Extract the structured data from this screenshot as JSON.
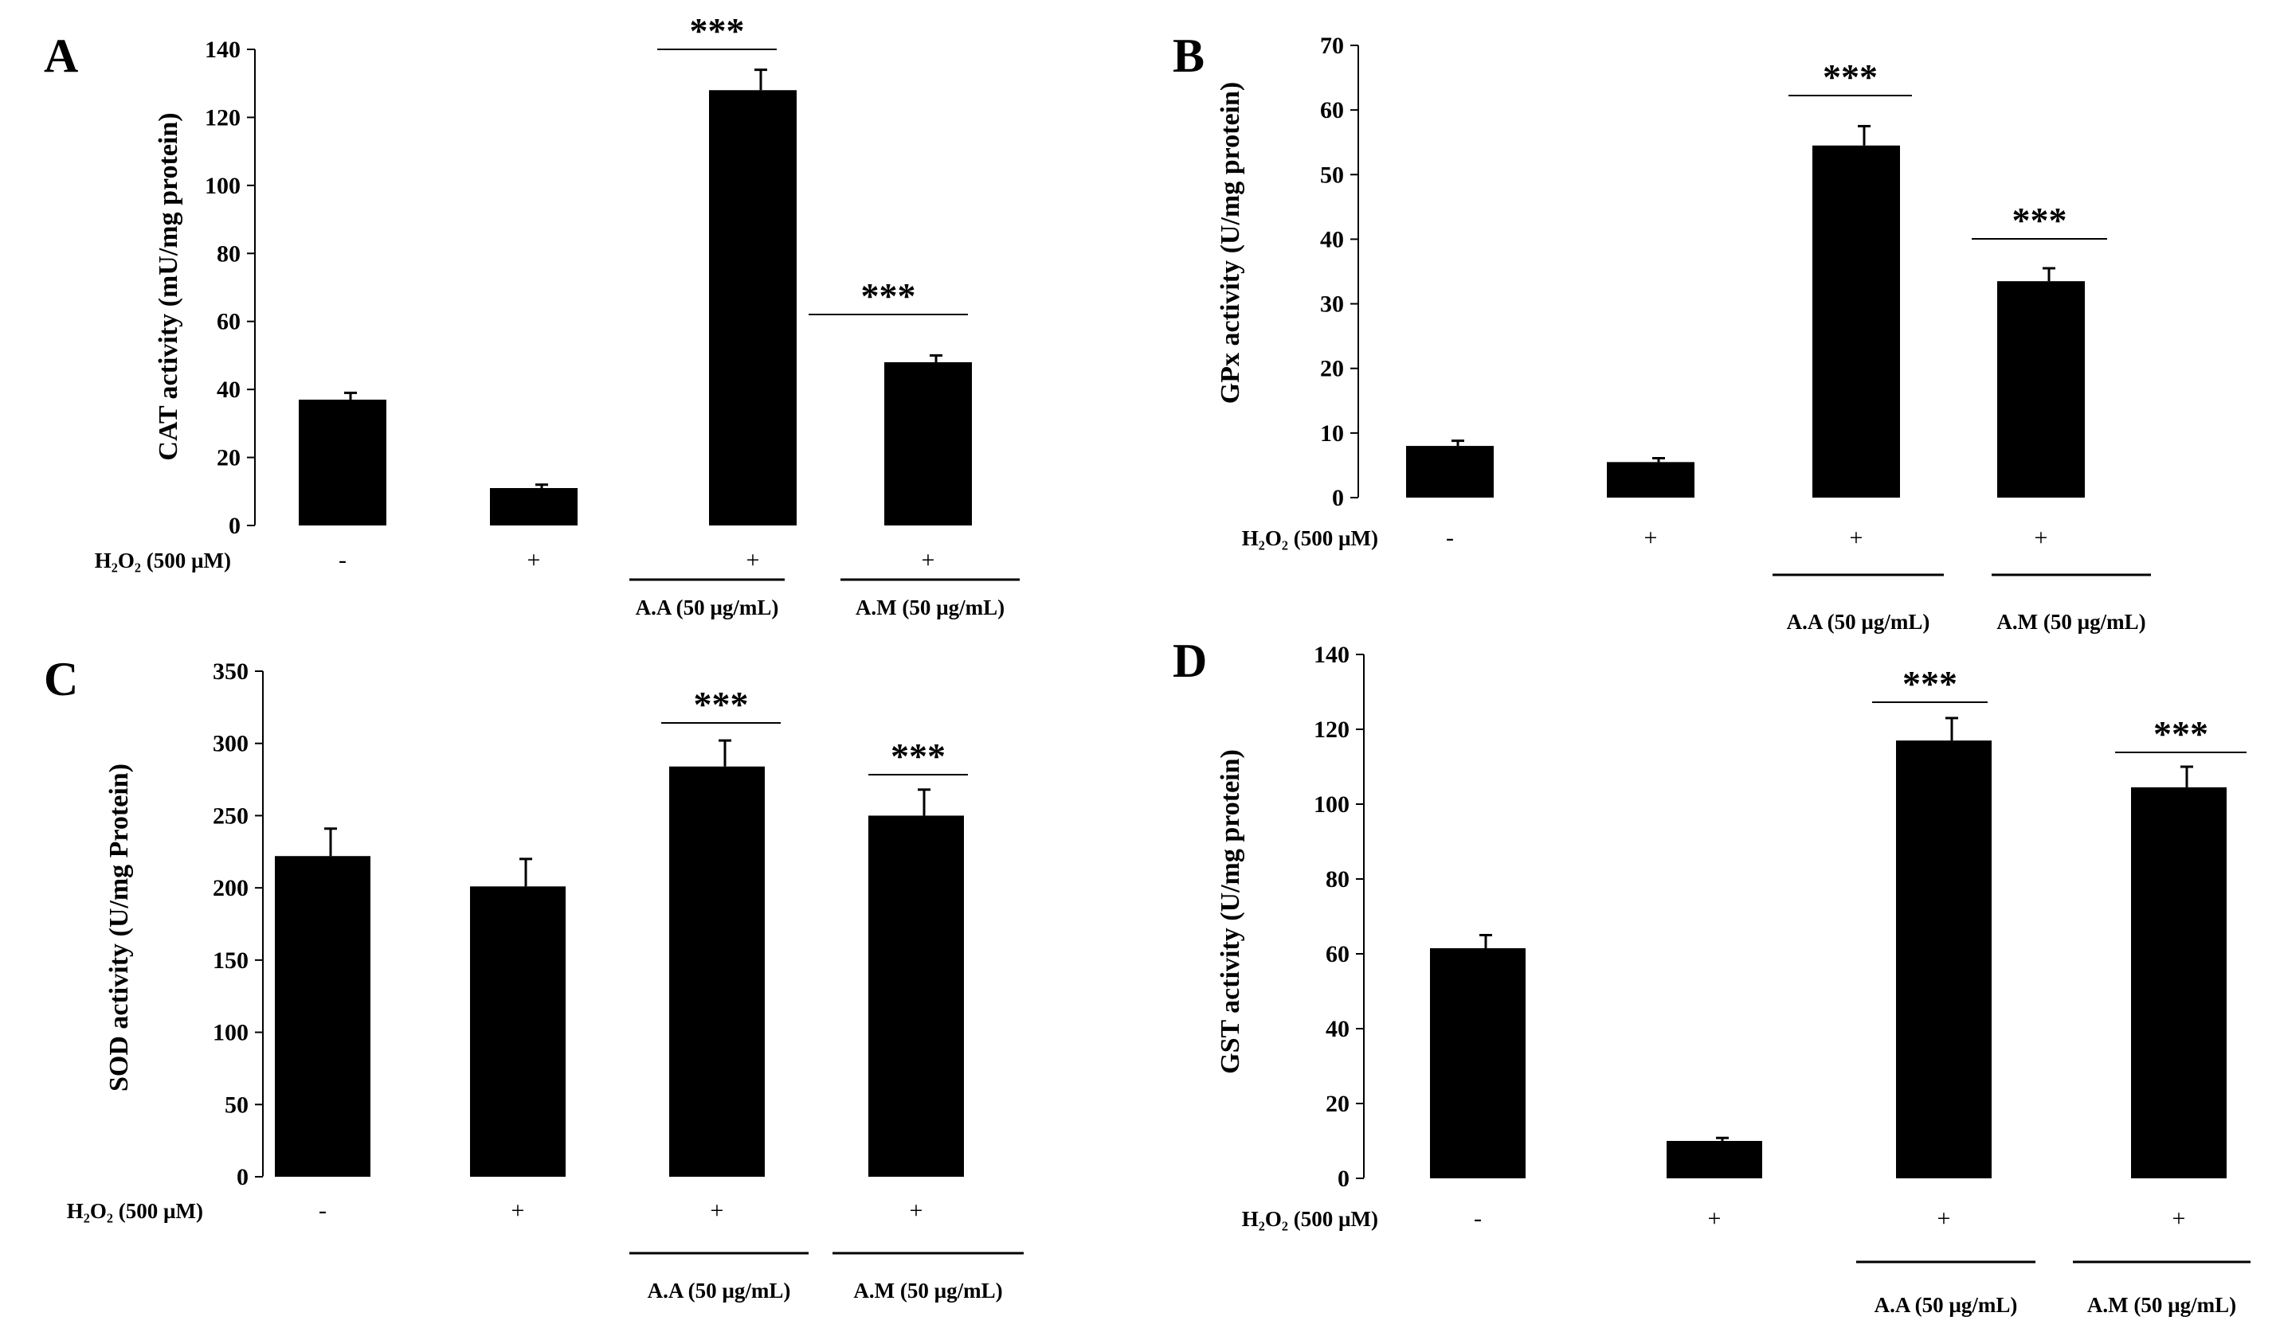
{
  "chart_data": [
    {
      "type": "bar",
      "panel": "A",
      "ylabel": "CAT activity (mU/mg protein)",
      "ylim": [
        0,
        140
      ],
      "yticks": [
        0,
        20,
        40,
        60,
        80,
        100,
        120,
        140
      ],
      "condition_label": "H₂O₂ (500 µM)",
      "categories": [
        "-",
        "+",
        "+",
        "+"
      ],
      "values": [
        37,
        11,
        128,
        48
      ],
      "errors": [
        2,
        1,
        6,
        2
      ],
      "groups": [
        "",
        "",
        "A.A (50 µg/mL)",
        "A.M (50 µg/mL)"
      ],
      "significance": [
        "",
        "",
        "***",
        "***"
      ]
    },
    {
      "type": "bar",
      "panel": "B",
      "ylabel": "GPx activity (U/mg protein)",
      "ylim": [
        0,
        70
      ],
      "yticks": [
        0,
        10,
        20,
        30,
        40,
        50,
        60,
        70
      ],
      "condition_label": "H₂O₂ (500 µM)",
      "categories": [
        "-",
        "+",
        "+",
        "+"
      ],
      "values": [
        8,
        5.5,
        54.5,
        33.5
      ],
      "errors": [
        0.8,
        0.6,
        3,
        2
      ],
      "groups": [
        "",
        "",
        "A.A (50 µg/mL)",
        "A.M (50 µg/mL)"
      ],
      "significance": [
        "",
        "",
        "***",
        "***"
      ]
    },
    {
      "type": "bar",
      "panel": "C",
      "ylabel": "SOD activity (U/mg Protein)",
      "ylim": [
        0,
        350
      ],
      "yticks": [
        0,
        50,
        100,
        150,
        200,
        250,
        300,
        350
      ],
      "condition_label": "H₂O₂ (500 µM)",
      "categories": [
        "-",
        "+",
        "+",
        "+"
      ],
      "values": [
        222,
        201,
        284,
        250
      ],
      "errors": [
        19,
        19,
        18,
        18
      ],
      "groups": [
        "",
        "",
        "A.A (50 µg/mL)",
        "A.M (50 µg/mL)"
      ],
      "significance": [
        "",
        "",
        "***",
        "***"
      ]
    },
    {
      "type": "bar",
      "panel": "D",
      "ylabel": "GST activity (U/mg protein)",
      "ylim": [
        0,
        140
      ],
      "yticks": [
        0,
        20,
        40,
        60,
        80,
        100,
        120,
        140
      ],
      "condition_label": "H₂O₂ (500 µM)",
      "categories": [
        "-",
        "+",
        "+",
        "+"
      ],
      "values": [
        61.5,
        10,
        117,
        104.5
      ],
      "errors": [
        3.5,
        0.8,
        6,
        5.5
      ],
      "groups": [
        "",
        "",
        "A.A (50 µg/mL)",
        "A.M (50 µg/mL)"
      ],
      "significance": [
        "",
        "",
        "***",
        "***"
      ]
    }
  ]
}
